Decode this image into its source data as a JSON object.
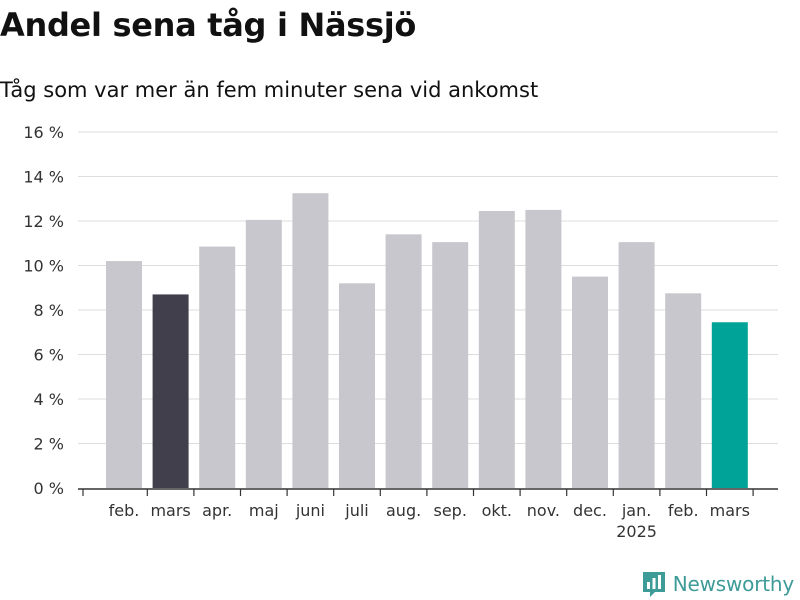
{
  "header": {
    "title": "Andel sena tåg i Nässjö",
    "subtitle": "Tåg som var mer än fem minuter sena vid ankomst"
  },
  "brand": {
    "name": "Newsworthy",
    "icon": "bar-chart-logo-icon",
    "color": "#3d9b98"
  },
  "colors": {
    "default_bar": "#c8c7cd",
    "previous_year_bar": "#403f4b",
    "latest_bar": "#00a398",
    "grid": "#dddddd",
    "axis": "#333333"
  },
  "chart_data": {
    "type": "bar",
    "title": "Andel sena tåg i Nässjö",
    "subtitle": "Tåg som var mer än fem minuter sena vid ankomst",
    "categories": [
      "feb.",
      "mars",
      "apr.",
      "maj",
      "juni",
      "juli",
      "aug.",
      "sep.",
      "okt.",
      "nov.",
      "dec.",
      "jan.",
      "feb.",
      "mars"
    ],
    "year_labels": [
      "",
      "",
      "",
      "",
      "",
      "",
      "",
      "",
      "",
      "",
      "",
      "2025",
      "",
      ""
    ],
    "values": [
      10.2,
      8.7,
      10.85,
      12.05,
      13.25,
      9.2,
      11.4,
      11.05,
      12.45,
      12.5,
      9.5,
      11.05,
      8.75,
      7.45
    ],
    "highlight": [
      "default",
      "previous_year",
      "default",
      "default",
      "default",
      "default",
      "default",
      "default",
      "default",
      "default",
      "default",
      "default",
      "default",
      "latest"
    ],
    "ylim": [
      0,
      16
    ],
    "yticks": [
      0,
      2,
      4,
      6,
      8,
      10,
      12,
      14,
      16
    ],
    "ytick_labels": [
      "0 %",
      "2 %",
      "4 %",
      "6 %",
      "8 %",
      "10 %",
      "12 %",
      "14 %",
      "16 %"
    ],
    "xlabel": "",
    "ylabel": "",
    "grid": true,
    "legend": "none"
  }
}
